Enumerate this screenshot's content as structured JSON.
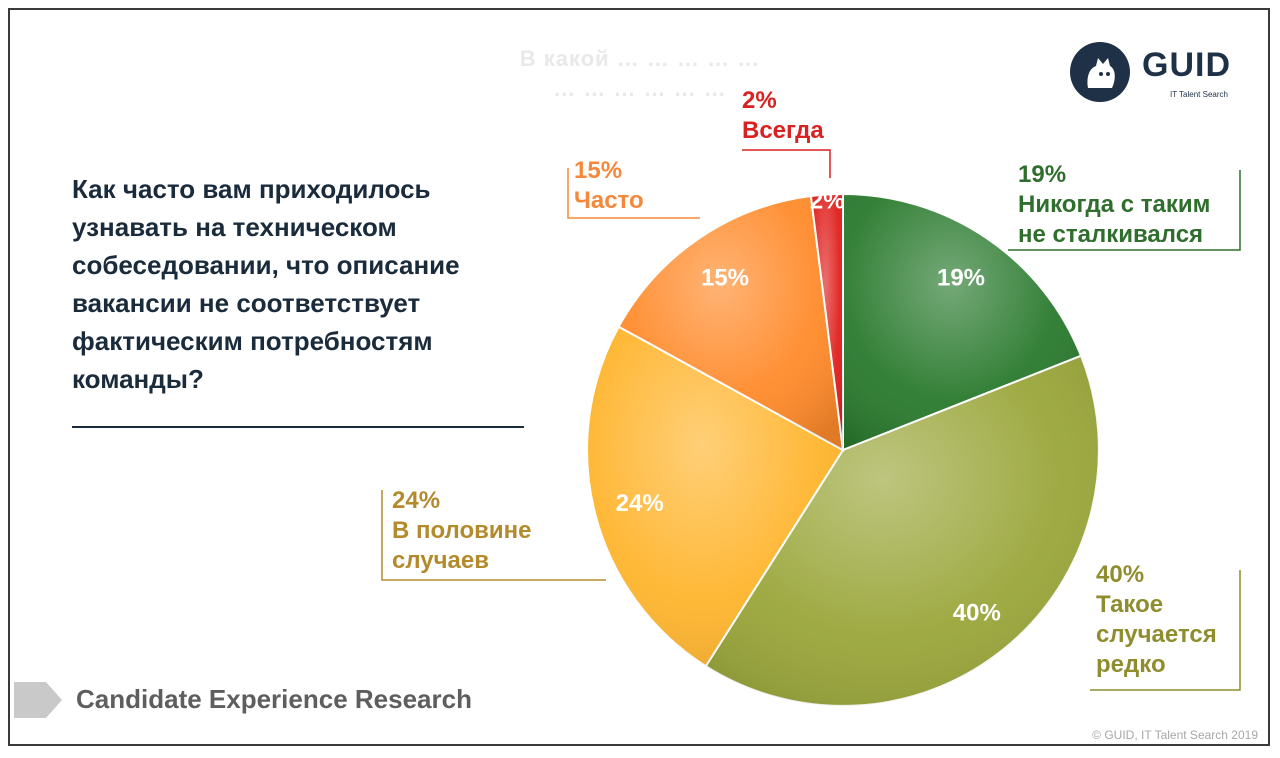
{
  "ghost_text": {
    "line1": "В какой … … … … …",
    "line2": "… … … … … …"
  },
  "question": "Как часто вам приходилось узнавать на техническом собеседовании, что описание вакансии не соответствует фактическим потребностям команды?",
  "logo": {
    "word": "GUID",
    "sub": "IT Talent Search"
  },
  "footer": {
    "title": "Candidate Experience Research",
    "copyright": "© GUID, IT Talent Search 2019"
  },
  "colors": {
    "never": "#2a7a2e",
    "rarely": "#9aa63a",
    "half": "#ffb52e",
    "often": "#ff8a2a",
    "always": "#e0201e",
    "label_never": "#2f6e2c",
    "label_rarely": "#8f8d2d",
    "label_half": "#b38b2d",
    "label_often": "#f5883b",
    "label_always": "#d92121"
  },
  "chart_data": {
    "type": "pie",
    "unit": "%",
    "slices": [
      {
        "key": "never",
        "value": 19,
        "inner_label": "19%",
        "pct": "19%",
        "label": "Никогда с таким не сталкивался",
        "label_lines": [
          "Никогда с таким",
          "не сталкивался"
        ]
      },
      {
        "key": "rarely",
        "value": 40,
        "inner_label": "40%",
        "pct": "40%",
        "label": "Такое случается редко",
        "label_lines": [
          "Такое",
          "случается",
          "редко"
        ]
      },
      {
        "key": "half",
        "value": 24,
        "inner_label": "24%",
        "pct": "24%",
        "label": "В половине случаев",
        "label_lines": [
          "В половине",
          "случаев"
        ]
      },
      {
        "key": "often",
        "value": 15,
        "inner_label": "15%",
        "pct": "15%",
        "label": "Часто",
        "label_lines": [
          "Часто"
        ]
      },
      {
        "key": "always",
        "value": 2,
        "inner_label": "2%",
        "pct": "2%",
        "label": "Всегда",
        "label_lines": [
          "Всегда"
        ]
      }
    ]
  }
}
